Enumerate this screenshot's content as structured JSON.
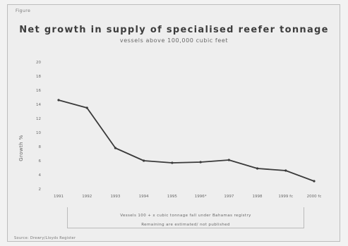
{
  "figure": {
    "label": "Figure",
    "note_line1": "Vessels 100 + x cubic tonnage fall under Bahamas registry",
    "note_line2": "Remaining are estimated/ not published",
    "source": "Source: Drewry/Lloyds Register"
  },
  "chart_data": {
    "type": "line",
    "title": "Net growth in supply of specialised reefer tonnage",
    "subtitle": "vessels above 100,000 cubic feet",
    "xlabel": "",
    "ylabel": "Growth %",
    "categories": [
      "1991",
      "1992",
      "1993",
      "1994",
      "1995",
      "1996*",
      "1997",
      "1998",
      "1999 fc",
      "2000 fc"
    ],
    "ylim": [
      2,
      20
    ],
    "yticks": [
      2,
      4,
      6,
      8,
      10,
      12,
      14,
      16,
      18,
      20
    ],
    "grid": false,
    "series": [
      {
        "values": [
          14.6,
          13.5,
          7.8,
          6.0,
          5.7,
          5.8,
          6.1,
          4.9,
          4.6,
          3.1
        ]
      }
    ],
    "line_color": "#3a3a3a"
  }
}
